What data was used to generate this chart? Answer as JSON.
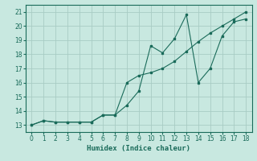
{
  "xlabel": "Humidex (Indice chaleur)",
  "xlim": [
    -0.5,
    18.5
  ],
  "ylim": [
    12.5,
    21.5
  ],
  "xticks": [
    0,
    1,
    2,
    3,
    4,
    5,
    6,
    7,
    8,
    9,
    10,
    11,
    12,
    13,
    14,
    15,
    16,
    17,
    18
  ],
  "yticks": [
    13,
    14,
    15,
    16,
    17,
    18,
    19,
    20,
    21
  ],
  "bg_color": "#c8e8e0",
  "grid_color": "#a8ccc4",
  "line_color": "#1a6b5a",
  "line1_x": [
    0,
    1,
    2,
    3,
    4,
    5,
    6,
    7,
    8,
    9,
    10,
    11,
    12,
    13,
    14,
    15,
    16,
    17,
    18
  ],
  "line1_y": [
    13.0,
    13.3,
    13.2,
    13.2,
    13.2,
    13.2,
    13.7,
    13.7,
    16.0,
    16.5,
    16.7,
    17.0,
    17.5,
    18.2,
    18.9,
    19.5,
    20.0,
    20.5,
    21.0
  ],
  "line2_x": [
    0,
    1,
    2,
    3,
    4,
    5,
    6,
    7,
    8,
    9,
    10,
    11,
    12,
    13,
    14,
    15,
    16,
    17,
    18
  ],
  "line2_y": [
    13.0,
    13.3,
    13.2,
    13.2,
    13.2,
    13.2,
    13.7,
    13.7,
    14.4,
    15.4,
    18.6,
    18.1,
    19.1,
    20.8,
    16.0,
    17.0,
    19.3,
    20.3,
    20.5
  ]
}
